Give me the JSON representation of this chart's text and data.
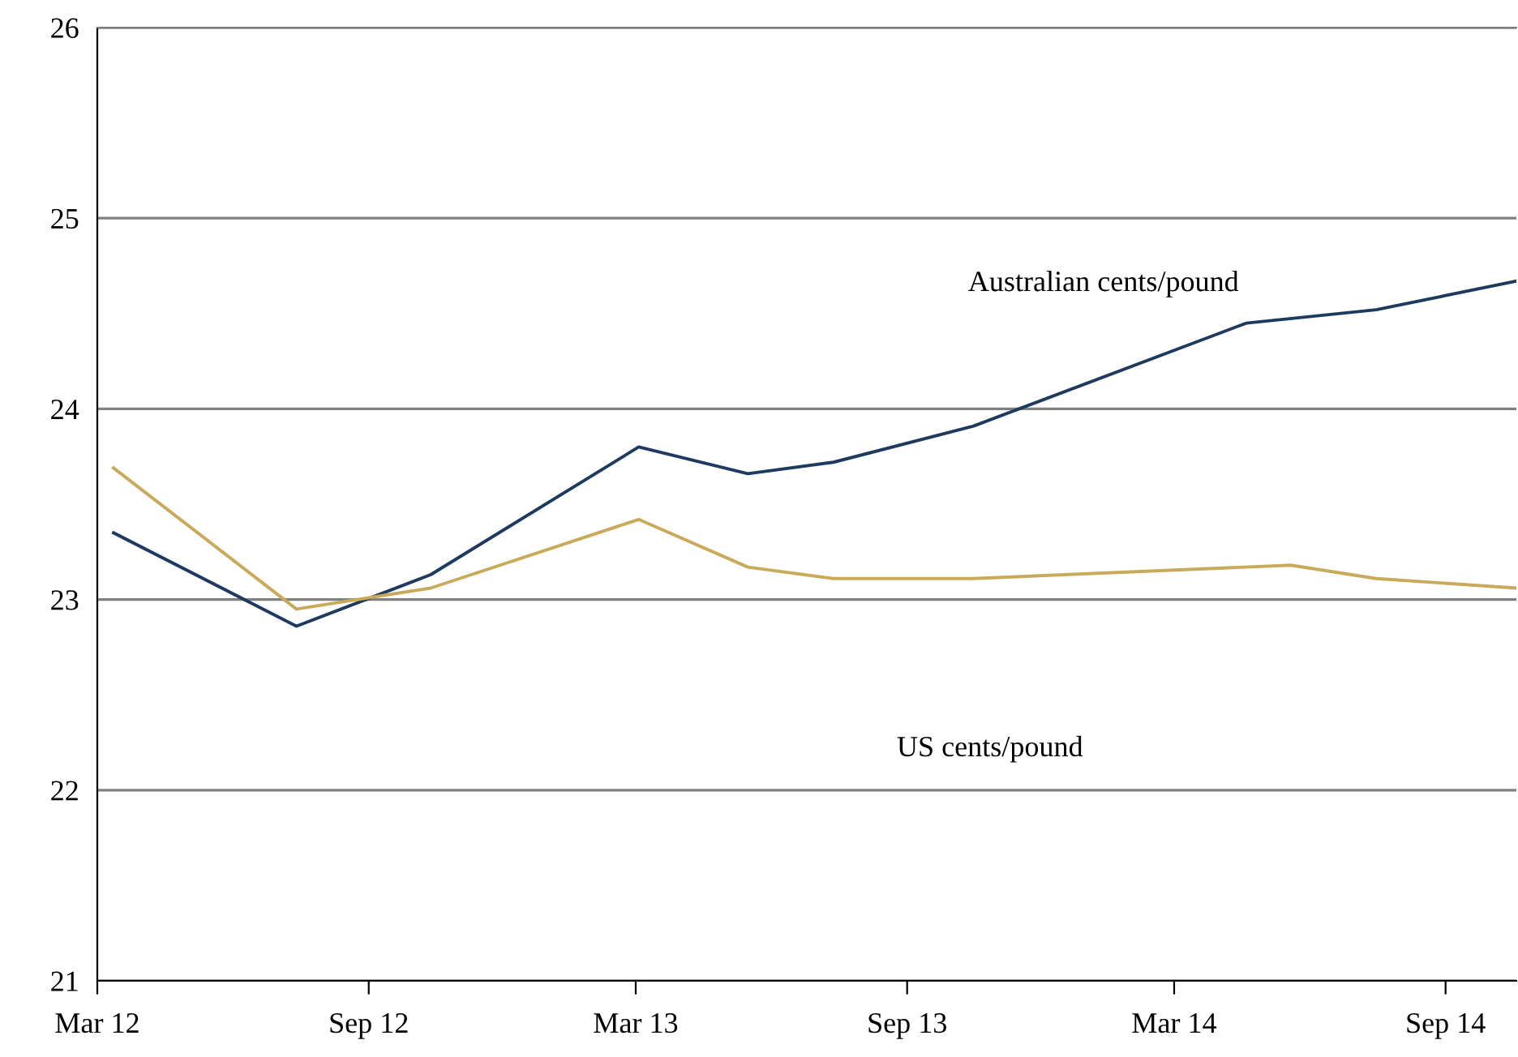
{
  "chart_data": {
    "type": "line",
    "xlim": [
      "2012-03-01",
      "2014-10-19"
    ],
    "ylim": [
      21,
      26
    ],
    "yticks": [
      21,
      22,
      23,
      24,
      25,
      26
    ],
    "xticks": [
      {
        "value": "2012-03-01",
        "label": "Mar 12"
      },
      {
        "value": "2012-09-01",
        "label": "Sep 12"
      },
      {
        "value": "2013-03-01",
        "label": "Mar 13"
      },
      {
        "value": "2013-09-01",
        "label": "Sep 13"
      },
      {
        "value": "2014-03-01",
        "label": "Mar 14"
      },
      {
        "value": "2014-09-01",
        "label": "Sep 14"
      }
    ],
    "grid": "y",
    "line_style": "solid",
    "marker": "none",
    "series": [
      {
        "color": "#1f3a5f",
        "x": [
          "2012-03-12",
          "2012-07-14",
          "2012-10-13",
          "2013-03-03",
          "2013-05-16",
          "2013-07-13",
          "2013-10-16",
          "2014-04-19",
          "2014-07-16",
          "2014-10-19"
        ],
        "values": [
          23.35,
          22.86,
          23.13,
          23.8,
          23.66,
          23.72,
          23.91,
          24.45,
          24.52,
          24.67
        ]
      },
      {
        "color": "#c8aa5a",
        "x": [
          "2012-03-12",
          "2012-07-14",
          "2012-10-13",
          "2013-03-03",
          "2013-05-16",
          "2013-07-13",
          "2013-10-16",
          "2014-05-19",
          "2014-07-16",
          "2014-10-19"
        ],
        "values": [
          23.69,
          22.95,
          23.06,
          23.42,
          23.17,
          23.11,
          23.11,
          23.18,
          23.11,
          23.06
        ]
      }
    ],
    "annotations": [
      "Australian cents/pound",
      "US cents/pound"
    ]
  }
}
